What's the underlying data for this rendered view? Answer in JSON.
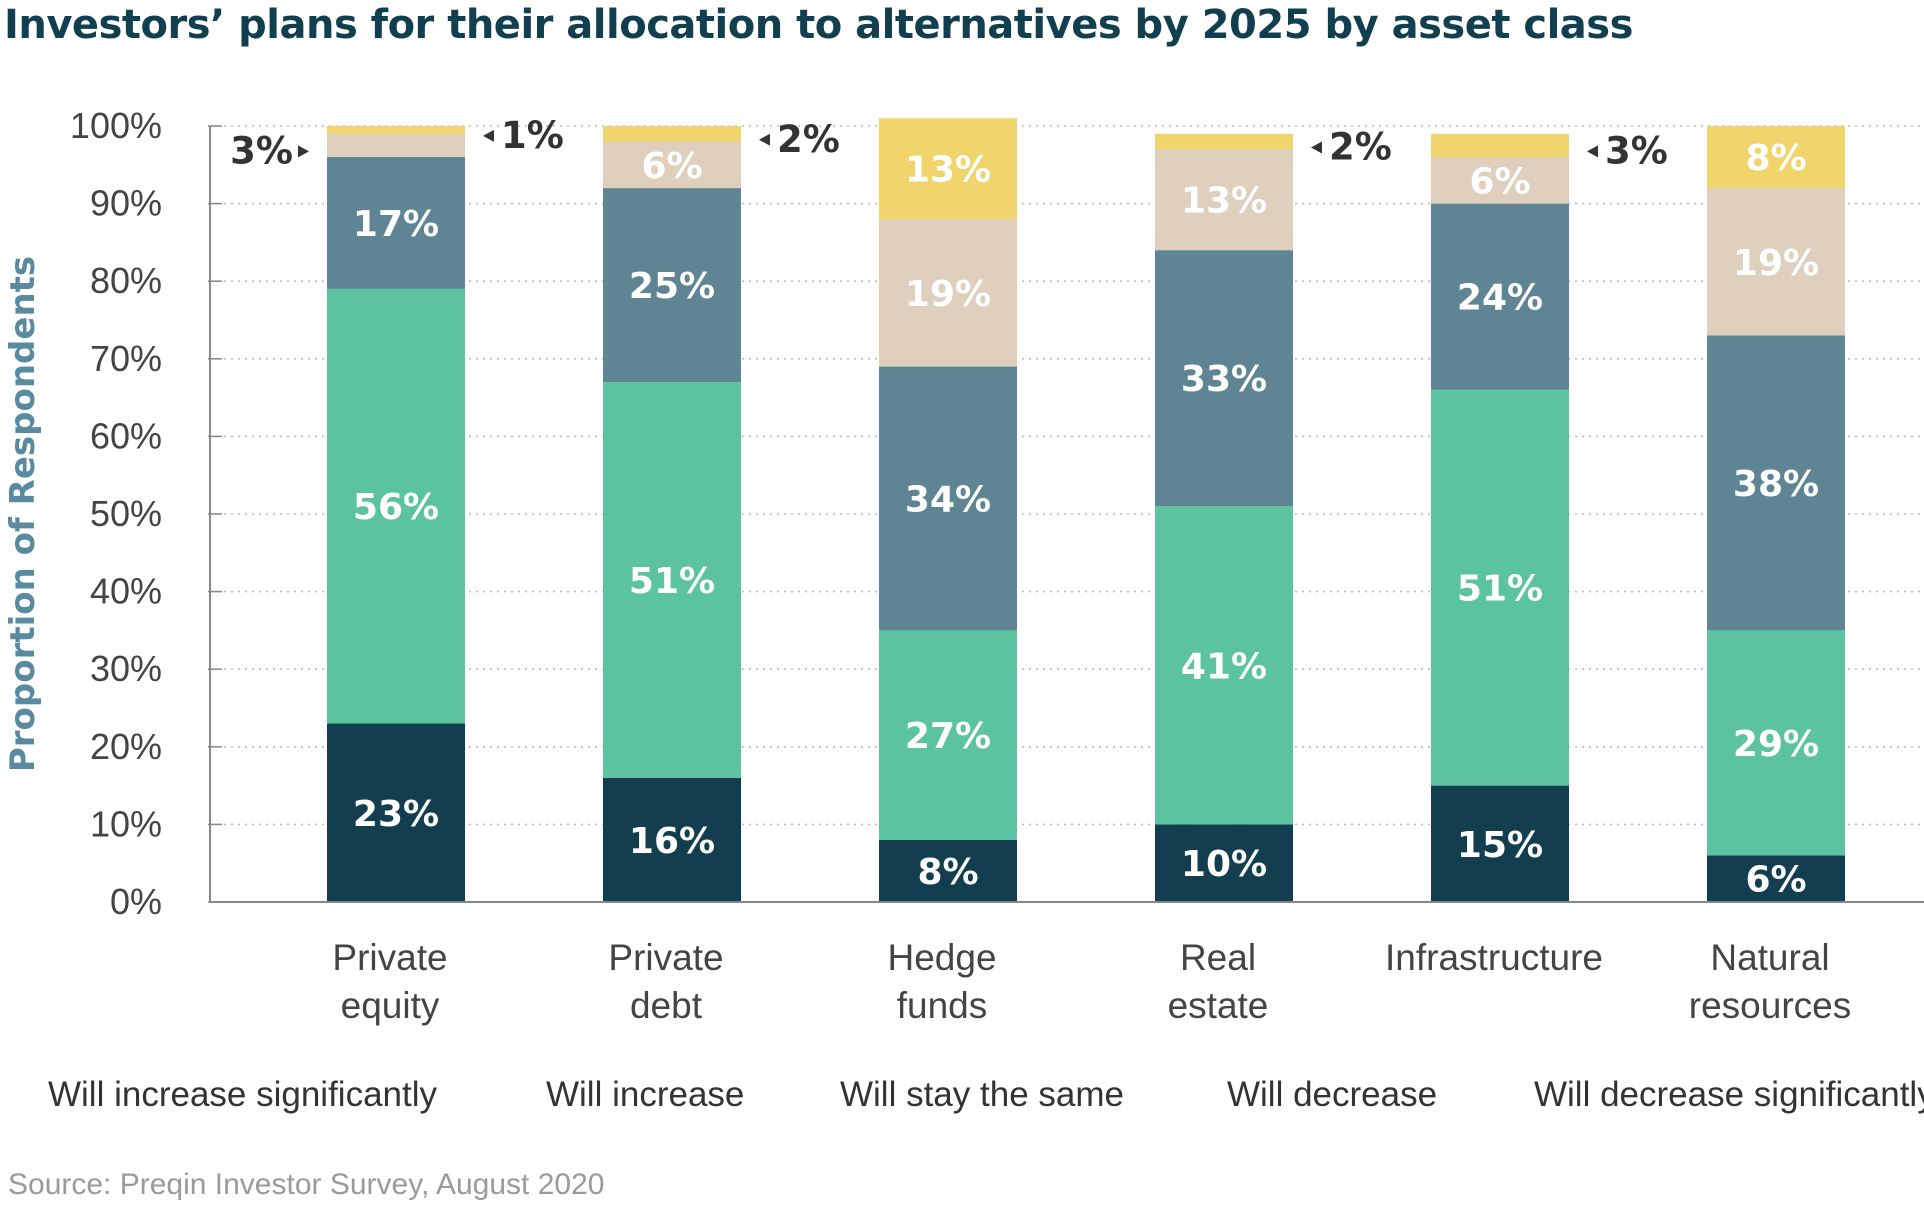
{
  "chart_data": {
    "type": "bar",
    "stacked": true,
    "title": "Investors’ plans for their allocation to alternatives by 2025 by asset class",
    "xlabel": "",
    "ylabel": "Proportion of Respondents",
    "ylim": [
      0,
      100
    ],
    "yticks": [
      0,
      10,
      20,
      30,
      40,
      50,
      60,
      70,
      80,
      90,
      100
    ],
    "ytick_labels": [
      "0%",
      "10%",
      "20%",
      "30%",
      "40%",
      "50%",
      "60%",
      "70%",
      "80%",
      "90%",
      "100%"
    ],
    "grid": true,
    "legend_position": "bottom",
    "categories": [
      [
        "Private",
        "equity"
      ],
      [
        "Private",
        "debt"
      ],
      [
        "Hedge",
        "funds"
      ],
      [
        "Real",
        "estate"
      ],
      [
        "Infrastructure"
      ],
      [
        "Natural",
        "resources"
      ]
    ],
    "series": [
      {
        "name": "Will increase significantly",
        "values": [
          23,
          16,
          8,
          10,
          15,
          6
        ],
        "labels": [
          "23%",
          "16%",
          "8%",
          "10%",
          "15%",
          "6%"
        ]
      },
      {
        "name": "Will increase",
        "values": [
          56,
          51,
          27,
          41,
          51,
          29
        ],
        "labels": [
          "56%",
          "51%",
          "27%",
          "41%",
          "51%",
          "29%"
        ]
      },
      {
        "name": "Will stay the same",
        "values": [
          17,
          25,
          34,
          33,
          24,
          38
        ],
        "labels": [
          "17%",
          "25%",
          "34%",
          "33%",
          "24%",
          "38%"
        ]
      },
      {
        "name": "Will decrease",
        "values": [
          3,
          6,
          19,
          13,
          6,
          19
        ],
        "labels": [
          "3%",
          "6%",
          "19%",
          "13%",
          "6%",
          "19%"
        ]
      },
      {
        "name": "Will decrease significantly",
        "values": [
          1,
          2,
          13,
          2,
          3,
          8
        ],
        "labels": [
          "1%",
          "2%",
          "13%",
          "2%",
          "3%",
          "8%"
        ]
      }
    ],
    "source": "Source: Preqin Investor Survey, August 2020"
  },
  "colors": {
    "title": "#113f4f",
    "ylabel": "#5a8aa0",
    "axis": "#888888",
    "grid": "#bbbbbb",
    "tick_text": "#444444",
    "category_text": "#444444",
    "callout_text": "#333333",
    "segment_label": "#ffffff",
    "series": [
      "#123e4f",
      "#5cc3a1",
      "#5f8493",
      "#dfd0be",
      "#f0d56c"
    ]
  }
}
